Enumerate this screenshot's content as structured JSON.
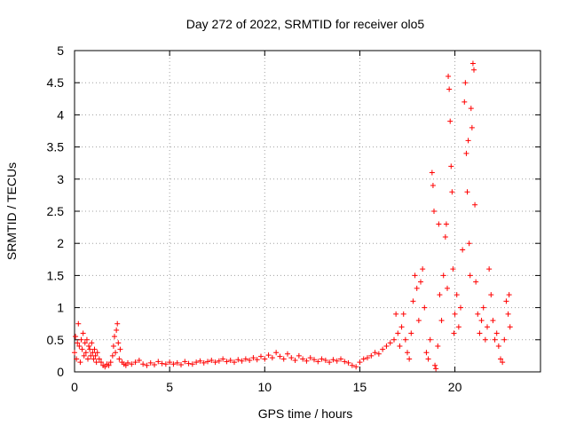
{
  "chart_data": {
    "type": "scatter",
    "title": "Day 272 of 2022, SRMTID for receiver olo5",
    "xlabel": "GPS time / hours",
    "ylabel": "SRMTID / TECUs",
    "xlim": [
      0,
      24.5
    ],
    "ylim": [
      0,
      5
    ],
    "x_ticks": [
      0,
      5,
      10,
      15,
      20
    ],
    "x_tick_labels": [
      "0",
      "5",
      "10",
      "15",
      "20"
    ],
    "y_ticks": [
      0,
      0.5,
      1,
      1.5,
      2,
      2.5,
      3,
      3.5,
      4,
      4.5,
      5
    ],
    "y_tick_labels": [
      "0",
      "0.5",
      "1",
      "1.5",
      "2",
      "2.5",
      "3",
      "3.5",
      "4",
      "4.5",
      "5"
    ],
    "grid": true,
    "marker": "+",
    "series_color": "#ff0000",
    "series": [
      {
        "name": "SRMTID",
        "points": [
          [
            0.0,
            0.3
          ],
          [
            0.05,
            0.55
          ],
          [
            0.1,
            0.2
          ],
          [
            0.15,
            0.45
          ],
          [
            0.2,
            0.75
          ],
          [
            0.25,
            0.4
          ],
          [
            0.3,
            0.15
          ],
          [
            0.35,
            0.5
          ],
          [
            0.4,
            0.35
          ],
          [
            0.45,
            0.6
          ],
          [
            0.5,
            0.25
          ],
          [
            0.55,
            0.45
          ],
          [
            0.6,
            0.3
          ],
          [
            0.65,
            0.5
          ],
          [
            0.7,
            0.2
          ],
          [
            0.75,
            0.4
          ],
          [
            0.8,
            0.35
          ],
          [
            0.85,
            0.25
          ],
          [
            0.9,
            0.45
          ],
          [
            0.95,
            0.3
          ],
          [
            1.0,
            0.2
          ],
          [
            1.05,
            0.35
          ],
          [
            1.1,
            0.25
          ],
          [
            1.15,
            0.15
          ],
          [
            1.2,
            0.3
          ],
          [
            1.3,
            0.2
          ],
          [
            1.4,
            0.15
          ],
          [
            1.5,
            0.1
          ],
          [
            1.6,
            0.08
          ],
          [
            1.7,
            0.12
          ],
          [
            1.8,
            0.1
          ],
          [
            1.9,
            0.15
          ],
          [
            2.0,
            0.25
          ],
          [
            2.05,
            0.4
          ],
          [
            2.1,
            0.55
          ],
          [
            2.15,
            0.3
          ],
          [
            2.2,
            0.65
          ],
          [
            2.25,
            0.75
          ],
          [
            2.3,
            0.45
          ],
          [
            2.35,
            0.2
          ],
          [
            2.4,
            0.35
          ],
          [
            2.5,
            0.15
          ],
          [
            2.6,
            0.12
          ],
          [
            2.7,
            0.1
          ],
          [
            2.8,
            0.14
          ],
          [
            3.0,
            0.12
          ],
          [
            3.2,
            0.15
          ],
          [
            3.4,
            0.18
          ],
          [
            3.6,
            0.12
          ],
          [
            3.8,
            0.1
          ],
          [
            4.0,
            0.14
          ],
          [
            4.2,
            0.11
          ],
          [
            4.4,
            0.16
          ],
          [
            4.6,
            0.13
          ],
          [
            4.8,
            0.12
          ],
          [
            5.0,
            0.15
          ],
          [
            5.2,
            0.12
          ],
          [
            5.4,
            0.14
          ],
          [
            5.6,
            0.11
          ],
          [
            5.8,
            0.16
          ],
          [
            6.0,
            0.13
          ],
          [
            6.2,
            0.12
          ],
          [
            6.4,
            0.15
          ],
          [
            6.6,
            0.17
          ],
          [
            6.8,
            0.14
          ],
          [
            7.0,
            0.16
          ],
          [
            7.2,
            0.18
          ],
          [
            7.4,
            0.15
          ],
          [
            7.6,
            0.17
          ],
          [
            7.8,
            0.2
          ],
          [
            8.0,
            0.16
          ],
          [
            8.2,
            0.18
          ],
          [
            8.4,
            0.15
          ],
          [
            8.6,
            0.19
          ],
          [
            8.8,
            0.17
          ],
          [
            9.0,
            0.2
          ],
          [
            9.2,
            0.18
          ],
          [
            9.4,
            0.22
          ],
          [
            9.6,
            0.19
          ],
          [
            9.8,
            0.24
          ],
          [
            10.0,
            0.2
          ],
          [
            10.2,
            0.26
          ],
          [
            10.4,
            0.22
          ],
          [
            10.6,
            0.3
          ],
          [
            10.8,
            0.24
          ],
          [
            11.0,
            0.2
          ],
          [
            11.2,
            0.28
          ],
          [
            11.4,
            0.22
          ],
          [
            11.6,
            0.18
          ],
          [
            11.8,
            0.25
          ],
          [
            12.0,
            0.2
          ],
          [
            12.2,
            0.17
          ],
          [
            12.4,
            0.22
          ],
          [
            12.6,
            0.19
          ],
          [
            12.8,
            0.16
          ],
          [
            13.0,
            0.2
          ],
          [
            13.2,
            0.18
          ],
          [
            13.4,
            0.15
          ],
          [
            13.6,
            0.19
          ],
          [
            13.8,
            0.17
          ],
          [
            14.0,
            0.2
          ],
          [
            14.2,
            0.16
          ],
          [
            14.4,
            0.14
          ],
          [
            14.6,
            0.1
          ],
          [
            14.8,
            0.08
          ],
          [
            15.0,
            0.15
          ],
          [
            15.2,
            0.2
          ],
          [
            15.4,
            0.22
          ],
          [
            15.6,
            0.25
          ],
          [
            15.8,
            0.3
          ],
          [
            16.0,
            0.28
          ],
          [
            16.2,
            0.35
          ],
          [
            16.4,
            0.4
          ],
          [
            16.6,
            0.45
          ],
          [
            16.8,
            0.5
          ],
          [
            16.9,
            0.9
          ],
          [
            17.0,
            0.6
          ],
          [
            17.1,
            0.4
          ],
          [
            17.2,
            0.7
          ],
          [
            17.3,
            0.9
          ],
          [
            17.4,
            0.5
          ],
          [
            17.5,
            0.3
          ],
          [
            17.6,
            0.2
          ],
          [
            17.7,
            0.6
          ],
          [
            17.8,
            1.1
          ],
          [
            17.9,
            1.5
          ],
          [
            18.0,
            1.3
          ],
          [
            18.1,
            0.8
          ],
          [
            18.2,
            1.4
          ],
          [
            18.3,
            1.6
          ],
          [
            18.4,
            1.0
          ],
          [
            18.5,
            0.3
          ],
          [
            18.6,
            0.2
          ],
          [
            18.7,
            0.5
          ],
          [
            18.8,
            3.1
          ],
          [
            18.85,
            2.9
          ],
          [
            18.9,
            2.5
          ],
          [
            18.95,
            0.1
          ],
          [
            19.0,
            0.05
          ],
          [
            19.1,
            0.4
          ],
          [
            19.15,
            2.3
          ],
          [
            19.2,
            1.2
          ],
          [
            19.3,
            0.8
          ],
          [
            19.4,
            1.5
          ],
          [
            19.5,
            2.1
          ],
          [
            19.55,
            2.3
          ],
          [
            19.6,
            1.3
          ],
          [
            19.65,
            4.6
          ],
          [
            19.7,
            4.4
          ],
          [
            19.75,
            3.9
          ],
          [
            19.8,
            3.2
          ],
          [
            19.85,
            2.8
          ],
          [
            19.9,
            1.6
          ],
          [
            19.95,
            0.6
          ],
          [
            20.0,
            0.9
          ],
          [
            20.1,
            1.2
          ],
          [
            20.2,
            0.7
          ],
          [
            20.3,
            1.0
          ],
          [
            20.4,
            1.9
          ],
          [
            20.5,
            4.2
          ],
          [
            20.55,
            4.5
          ],
          [
            20.6,
            3.4
          ],
          [
            20.65,
            2.8
          ],
          [
            20.7,
            3.6
          ],
          [
            20.75,
            2.0
          ],
          [
            20.8,
            1.5
          ],
          [
            20.85,
            4.1
          ],
          [
            20.9,
            3.8
          ],
          [
            20.95,
            4.8
          ],
          [
            21.0,
            4.7
          ],
          [
            21.05,
            2.6
          ],
          [
            21.1,
            1.4
          ],
          [
            21.2,
            0.9
          ],
          [
            21.3,
            0.6
          ],
          [
            21.4,
            0.8
          ],
          [
            21.5,
            1.0
          ],
          [
            21.6,
            0.5
          ],
          [
            21.7,
            0.7
          ],
          [
            21.8,
            1.6
          ],
          [
            21.9,
            1.2
          ],
          [
            22.0,
            0.8
          ],
          [
            22.1,
            0.5
          ],
          [
            22.2,
            0.6
          ],
          [
            22.3,
            0.4
          ],
          [
            22.4,
            0.2
          ],
          [
            22.5,
            0.15
          ],
          [
            22.6,
            0.5
          ],
          [
            22.7,
            1.1
          ],
          [
            22.8,
            0.9
          ],
          [
            22.85,
            1.2
          ],
          [
            22.9,
            0.7
          ]
        ]
      }
    ]
  }
}
